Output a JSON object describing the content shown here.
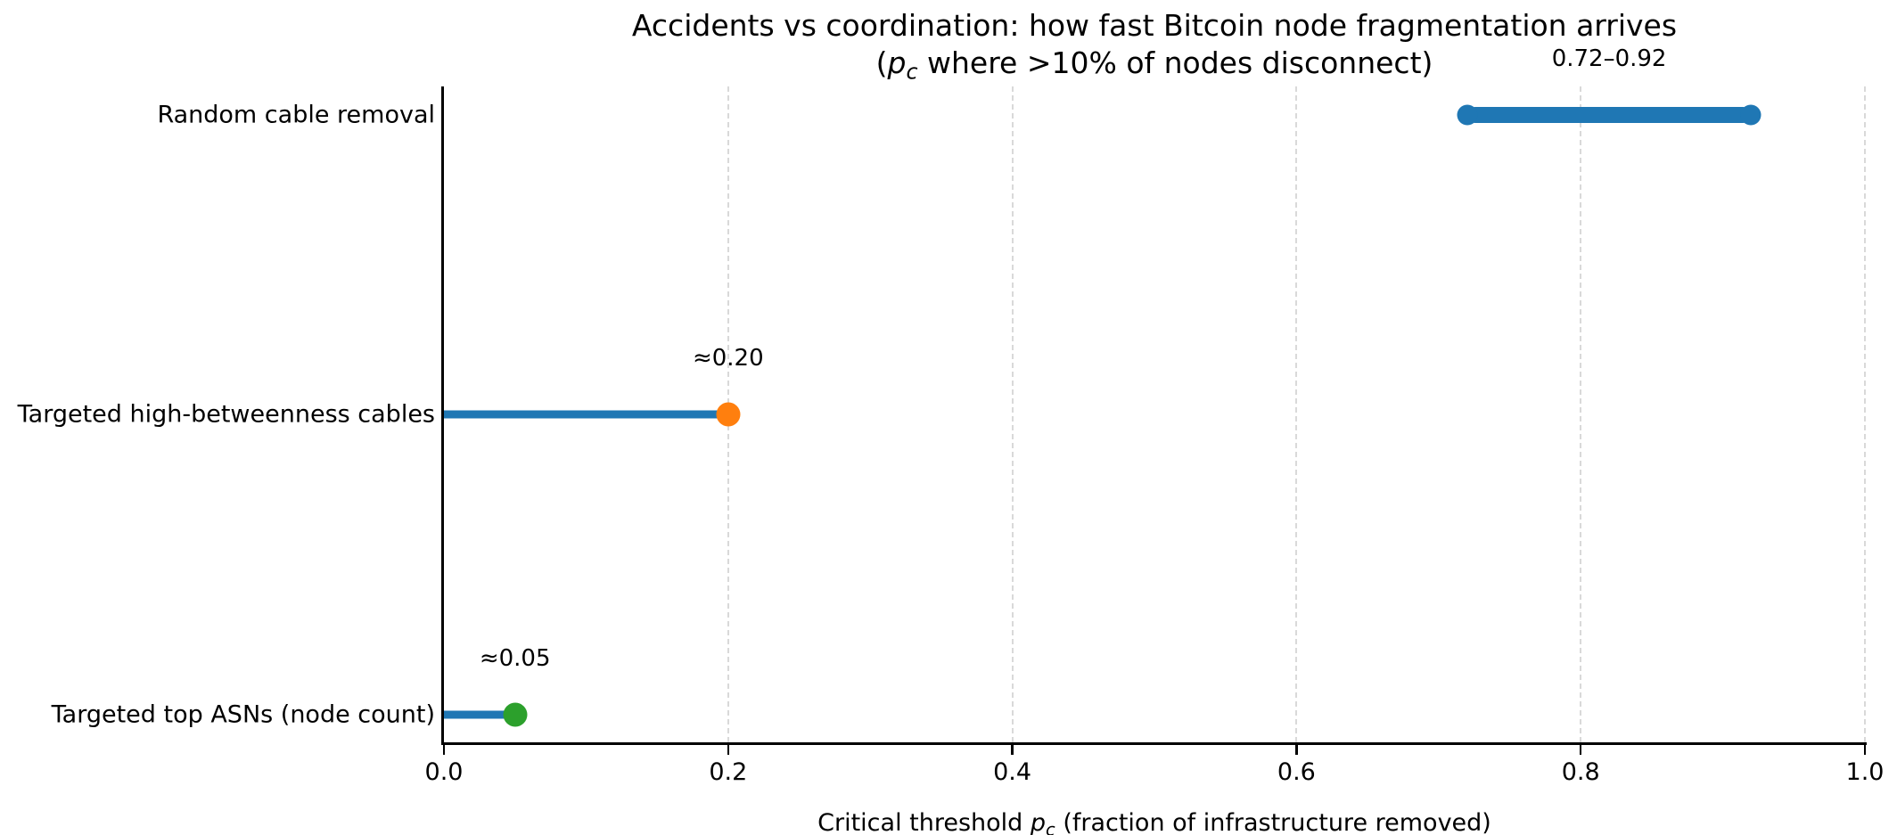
{
  "title": {
    "line1": "Accidents vs coordination: how fast Bitcoin node fragmentation arrives",
    "line2_pre": "(",
    "line2_var": "p",
    "line2_sub": "c",
    "line2_rest": " where >10% of nodes disconnect)"
  },
  "x_axis_label": {
    "pre": "Critical threshold ",
    "var": "p",
    "sub": "c",
    "rest": " (fraction of infrastructure removed)"
  },
  "colors": {
    "blue": "#1f77b4",
    "orange": "#ff7f0e",
    "green": "#2ca02c",
    "grid": "#d9d9d9",
    "axis": "#000000"
  },
  "chart_data": {
    "type": "bar",
    "subtype": "horizontal-lollipop-with-range",
    "title": "Accidents vs coordination: how fast Bitcoin node fragmentation arrives (p_c where >10% of nodes disconnect)",
    "xlabel": "Critical threshold p_c (fraction of infrastructure removed)",
    "ylabel": "",
    "xlim": [
      0.0,
      1.0
    ],
    "grid": "vertical dashed gridlines at each x tick",
    "legend": "none",
    "x_ticks": [
      {
        "v": 0.0,
        "label": "0.0"
      },
      {
        "v": 0.2,
        "label": "0.2"
      },
      {
        "v": 0.4,
        "label": "0.4"
      },
      {
        "v": 0.6,
        "label": "0.6"
      },
      {
        "v": 0.8,
        "label": "0.8"
      },
      {
        "v": 1.0,
        "label": "1.0"
      }
    ],
    "categories": [
      "Random cable removal",
      "Targeted high-betweenness cables",
      "Targeted top ASNs (node count)"
    ],
    "rows": [
      {
        "label": "Random cable removal",
        "kind": "range",
        "lo": 0.72,
        "hi": 0.92,
        "annotation": "0.72–0.92",
        "bar_color": "#1f77b4"
      },
      {
        "label": "Targeted high-betweenness cables",
        "kind": "lollipop",
        "value": 0.2,
        "annotation": "≈0.20",
        "stem_color": "#1f77b4",
        "dot_color": "#ff7f0e"
      },
      {
        "label": "Targeted top ASNs (node count)",
        "kind": "lollipop",
        "value": 0.05,
        "annotation": "≈0.05",
        "stem_color": "#1f77b4",
        "dot_color": "#2ca02c"
      }
    ]
  }
}
